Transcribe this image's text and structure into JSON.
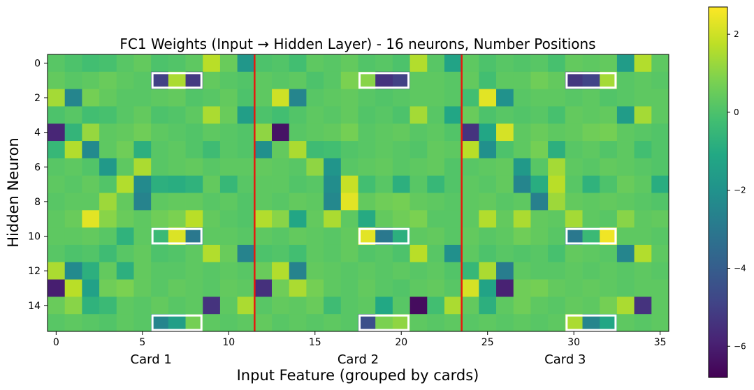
{
  "chart_data": {
    "type": "heatmap",
    "title": "FC1 Weights (Input → Hidden Layer) - 16 neurons, Number Positions",
    "xlabel": "Input Feature (grouped by cards)",
    "ylabel": "Hidden Neuron",
    "x_ticks": [
      0,
      5,
      10,
      15,
      20,
      25,
      30,
      35
    ],
    "y_ticks": [
      0,
      2,
      4,
      6,
      8,
      10,
      12,
      14
    ],
    "xlim": [
      -0.5,
      35.5
    ],
    "ylim": [
      15.5,
      -0.5
    ],
    "group_labels": [
      {
        "label": "Card 1",
        "center": 5.5
      },
      {
        "label": "Card 2",
        "center": 17.5
      },
      {
        "label": "Card 3",
        "center": 29.5
      }
    ],
    "separators": [
      11.5,
      23.5
    ],
    "separator_color": "#e8180d",
    "colorbar": {
      "min": -6.8,
      "max": 2.7,
      "ticks": [
        2,
        0,
        -2,
        -4,
        -6
      ],
      "tick_labels": [
        "2",
        "0",
        "−2",
        "−4",
        "−6"
      ],
      "colormap": "viridis"
    },
    "highlight_boxes": [
      {
        "row": 1,
        "cols": [
          6,
          8
        ]
      },
      {
        "row": 1,
        "cols": [
          18,
          20
        ]
      },
      {
        "row": 1,
        "cols": [
          30,
          32
        ]
      },
      {
        "row": 10,
        "cols": [
          6,
          8
        ]
      },
      {
        "row": 10,
        "cols": [
          18,
          20
        ]
      },
      {
        "row": 10,
        "cols": [
          30,
          32
        ]
      },
      {
        "row": 15,
        "cols": [
          6,
          8
        ]
      },
      {
        "row": 15,
        "cols": [
          18,
          20
        ]
      },
      {
        "row": 15,
        "cols": [
          30,
          32
        ]
      }
    ],
    "values": [
      [
        0.2,
        0,
        -0.2,
        -0.1,
        0.2,
        0.4,
        0,
        0.1,
        0.3,
        1.7,
        0.5,
        -1.8,
        0,
        0.1,
        -0.2,
        0.3,
        0.2,
        0.4,
        0.1,
        0.2,
        0,
        1.6,
        0.2,
        -1.3,
        0.3,
        0,
        0.2,
        0.1,
        0.2,
        -0.1,
        0.4,
        0.3,
        0.4,
        -1.6,
        1.6,
        0.3
      ],
      [
        0.4,
        0.2,
        0.3,
        0.5,
        0.3,
        0.2,
        -5.0,
        1.5,
        -5.2,
        0.4,
        0.2,
        0.1,
        0.3,
        0.2,
        0.3,
        0,
        0.2,
        0.8,
        1.0,
        -5.4,
        -5.0,
        0.3,
        0.3,
        0.2,
        0.4,
        -0.2,
        0.3,
        0.3,
        0.6,
        0.4,
        -5.3,
        -4.9,
        1.4,
        0.2,
        0.3,
        0.2
      ],
      [
        1.4,
        -2.5,
        0.7,
        0.4,
        0.2,
        0.2,
        0.3,
        0.4,
        0.1,
        0.2,
        0.4,
        0,
        0.3,
        2.0,
        -2.5,
        0.2,
        0.3,
        0.4,
        0.2,
        0.1,
        0.2,
        0.3,
        0.3,
        0.2,
        -0.2,
        2.3,
        -2.0,
        0.2,
        0.3,
        0.3,
        0.2,
        0.3,
        0.1,
        0.2,
        0.3,
        0.3
      ],
      [
        0,
        0.2,
        -0.2,
        -0.1,
        0.2,
        0.4,
        0,
        0.1,
        0.3,
        1.5,
        0.5,
        -1.5,
        0,
        -0.2,
        0.1,
        0.3,
        0.2,
        0.4,
        0.1,
        0.2,
        0,
        1.4,
        0.2,
        -1.2,
        0.5,
        0,
        0.2,
        0.1,
        0.2,
        -0.1,
        0.4,
        0.3,
        0.4,
        -1.6,
        1.4,
        0.3
      ],
      [
        -5.8,
        -0.6,
        1.2,
        0.3,
        0.4,
        0.6,
        0.3,
        0.2,
        0.1,
        0.3,
        0.2,
        0.1,
        1.1,
        -6.3,
        0.2,
        0.3,
        0.4,
        0.7,
        0.2,
        0.3,
        0.4,
        0.2,
        0.3,
        0.1,
        -5.4,
        -1.2,
        2.1,
        0.3,
        0.5,
        0.3,
        0.4,
        0.6,
        0.7,
        0.3,
        0.2,
        0.1
      ],
      [
        -0.5,
        1.6,
        -2.3,
        0.3,
        0.6,
        -0.8,
        0.2,
        0.3,
        0.1,
        -0.3,
        0.2,
        0.1,
        -2.1,
        0.4,
        1.5,
        -0.3,
        -0.2,
        0.1,
        0.2,
        0.3,
        0.2,
        0.1,
        0.4,
        0.3,
        1.7,
        -2.1,
        0,
        0.3,
        0.7,
        -0.8,
        0.2,
        0.3,
        0.1,
        0.3,
        -0.2,
        0.1
      ],
      [
        0.2,
        0.3,
        0.1,
        -1.7,
        0.3,
        1.5,
        0.2,
        0.3,
        0.4,
        0.2,
        0.3,
        0.3,
        0.4,
        0.3,
        0.2,
        1.1,
        -1.9,
        0.2,
        0.3,
        0.4,
        0.2,
        0.3,
        0.4,
        0.1,
        0.2,
        0.3,
        0.4,
        -1.7,
        0.2,
        1.4,
        0.3,
        0.2,
        0.4,
        0.3,
        0.2,
        0.1
      ],
      [
        0.3,
        0.2,
        0.4,
        0.1,
        1.6,
        -2.3,
        -0.8,
        -0.9,
        -0.7,
        0.4,
        -0.5,
        0.2,
        0.3,
        0.3,
        0.1,
        0.2,
        -2.2,
        1.9,
        -0.2,
        0.2,
        -0.8,
        0.2,
        -0.5,
        0.1,
        0.3,
        0.2,
        0.4,
        -2.5,
        -0.9,
        1.7,
        0.2,
        -0.7,
        0,
        0.5,
        0.3,
        -0.9
      ],
      [
        0.2,
        0.3,
        0.3,
        1.3,
        0.4,
        -2.6,
        0.3,
        0.4,
        0.4,
        0.2,
        0.3,
        0.1,
        0.3,
        0.2,
        0.4,
        0.3,
        -2.4,
        2.3,
        0.4,
        0.6,
        0.7,
        0.4,
        0.3,
        0.2,
        0.3,
        0.4,
        0.2,
        0.3,
        -2.7,
        1.3,
        0.4,
        0.3,
        0.4,
        0.3,
        0.2,
        0.1
      ],
      [
        0.3,
        0.5,
        2.3,
        1.0,
        0.5,
        0.3,
        0.6,
        0.8,
        1.7,
        0.4,
        0.2,
        0.1,
        1.6,
        1.0,
        -1.2,
        0.4,
        1.5,
        0.3,
        -1.0,
        0.4,
        0.6,
        0.8,
        0.2,
        0.2,
        0.3,
        1.6,
        0.4,
        1.5,
        0.4,
        0.3,
        1.4,
        0.3,
        0.2,
        1.0,
        0.3,
        0.4
      ],
      [
        0.3,
        0.3,
        0.4,
        0.2,
        -0.7,
        0.3,
        -0.4,
        2.2,
        -3.0,
        0.3,
        0.3,
        0.2,
        0.3,
        0.2,
        0.4,
        0.3,
        0.2,
        0.4,
        2.3,
        -3.0,
        -0.8,
        0.3,
        0.4,
        0.2,
        0.4,
        0.2,
        0.3,
        0.6,
        0.4,
        0.2,
        -3.0,
        -0.4,
        2.5,
        0.3,
        0.3,
        0.2
      ],
      [
        0.2,
        0,
        0.1,
        -0.3,
        0.2,
        0.4,
        0,
        0.1,
        0.3,
        1.6,
        0.5,
        -2.6,
        0,
        0.1,
        -0.2,
        0.3,
        0.2,
        0.4,
        0.1,
        0.2,
        0,
        1.7,
        0.2,
        -2.1,
        0.3,
        0,
        0.2,
        0.1,
        0.2,
        -0.1,
        0.4,
        0.3,
        0.2,
        -2.5,
        1.6,
        0.3
      ],
      [
        1.5,
        -2.3,
        -0.8,
        0.4,
        -0.8,
        0.4,
        0.2,
        0.2,
        0.3,
        0.2,
        0.3,
        0.2,
        0.5,
        1.6,
        -2.6,
        0.4,
        0.3,
        0.2,
        0.3,
        0.2,
        0.3,
        0.2,
        0.3,
        0.1,
        -0.5,
        1.5,
        -2.8,
        0.3,
        0.2,
        0.2,
        0.3,
        0.2,
        0.3,
        0.2,
        0.3,
        0.2
      ],
      [
        -6.0,
        1.7,
        -1.4,
        0.6,
        0.8,
        0.4,
        0.2,
        0.4,
        0.3,
        0.2,
        0.4,
        0.3,
        -5.5,
        0.6,
        1.5,
        0.7,
        0.3,
        0.2,
        0.4,
        0.2,
        0.1,
        0.3,
        0.4,
        0.2,
        2.1,
        -1.3,
        -5.9,
        0.6,
        0.7,
        0.4,
        0.3,
        0.4,
        0.3,
        0.2,
        0.3,
        0.3
      ],
      [
        0.5,
        1.0,
        -0.7,
        -0.4,
        0.3,
        0.2,
        0.4,
        0.2,
        0.3,
        -5.4,
        0.3,
        1.5,
        0.2,
        0.4,
        0.3,
        0.5,
        -0.3,
        0.2,
        0.3,
        -1.1,
        0.2,
        -6.5,
        -0.2,
        1.5,
        0.4,
        -0.8,
        0.3,
        0.6,
        0.3,
        0.2,
        0.4,
        0.3,
        0.7,
        1.5,
        -5.4,
        0.3
      ],
      [
        0.2,
        0.3,
        0.2,
        0.1,
        0.3,
        0.2,
        -2.5,
        -1.5,
        0.7,
        0.3,
        0.2,
        0.3,
        0.4,
        0.2,
        0.3,
        0.2,
        0.3,
        0.2,
        -4.5,
        0.8,
        1.1,
        0.3,
        0.2,
        0.3,
        0.2,
        0.3,
        0.2,
        0.3,
        0.2,
        0.3,
        1.5,
        -2.5,
        -1.2,
        0.3,
        0.2,
        0.3
      ]
    ]
  }
}
